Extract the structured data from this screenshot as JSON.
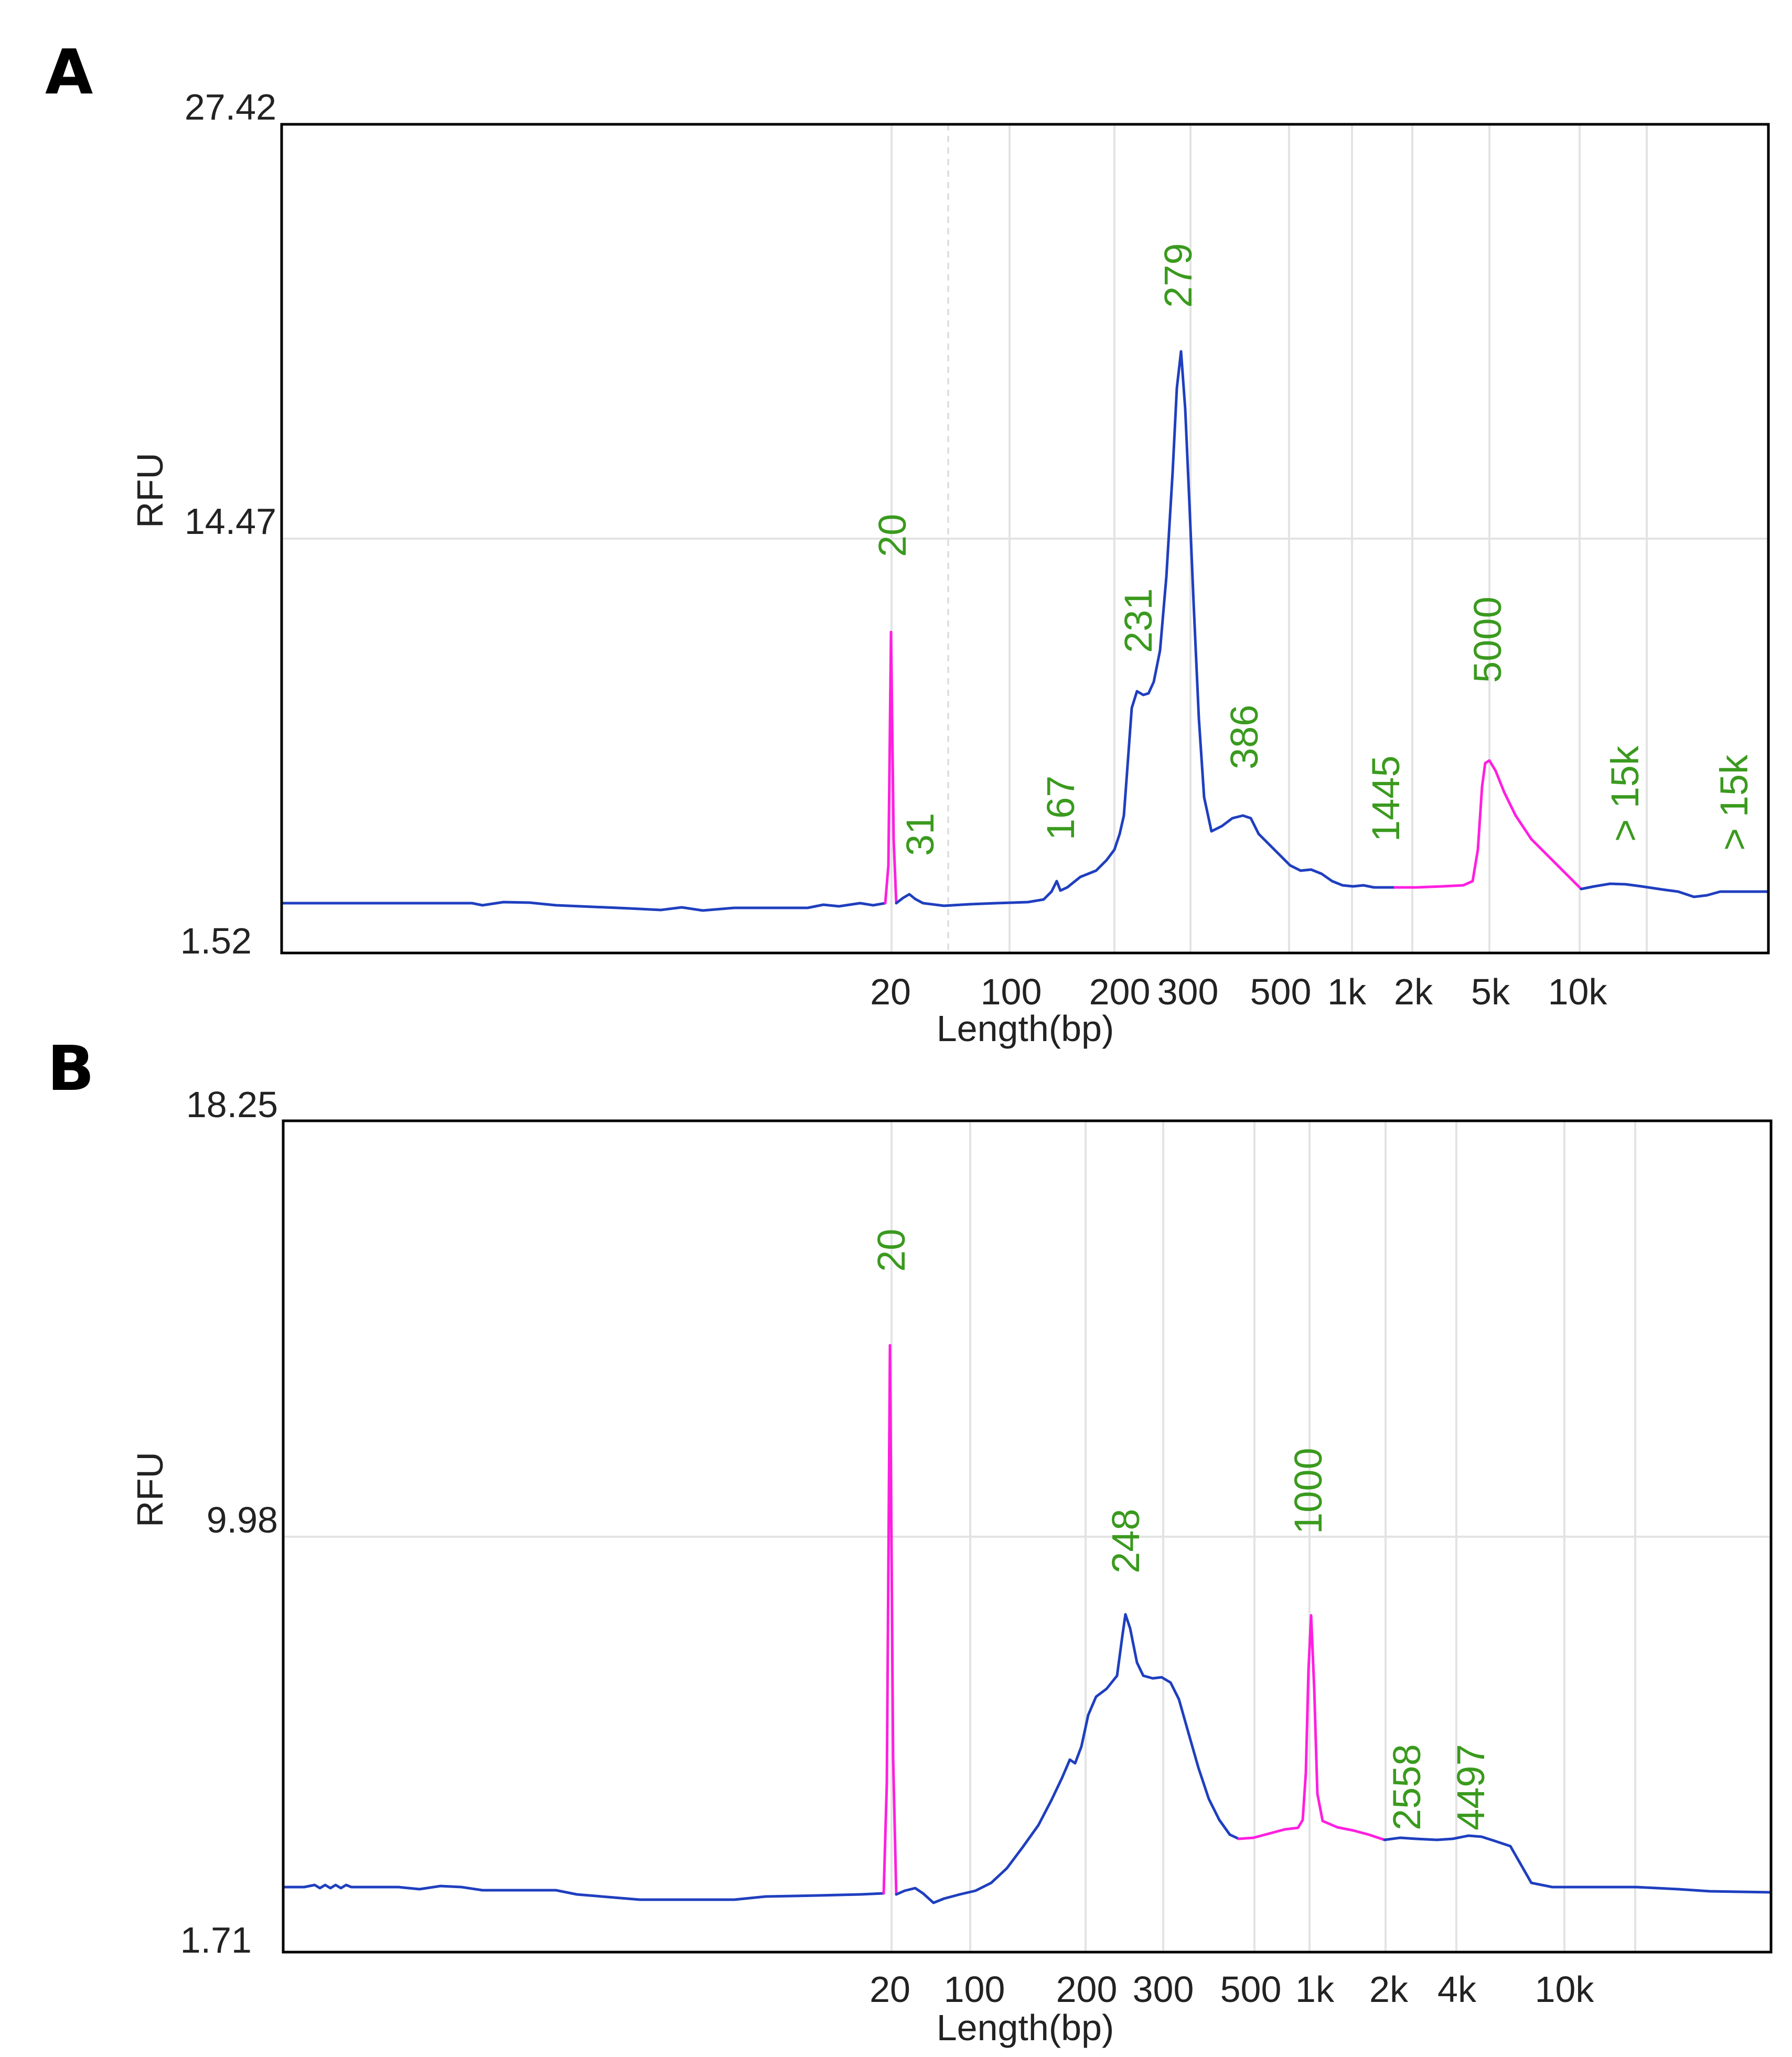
{
  "colors": {
    "trace": "#1f3fbf",
    "marker": "#ff1fe0",
    "peak_label": "#3a9a1e",
    "grid": "#e3e3e3"
  },
  "chart_data": [
    {
      "panel": "A",
      "type": "line",
      "xlabel": "Length(bp)",
      "ylabel": "RFU",
      "x_scale": "nonlinear-electrophoresis",
      "y_ticks": [
        "27.42",
        "14.47",
        "1.52"
      ],
      "ylim": [
        1.52,
        27.42
      ],
      "x_ticks": [
        "20",
        "100",
        "200",
        "300",
        "500",
        "1k",
        "2k",
        "5k",
        "10k"
      ],
      "grid": true,
      "peaks": [
        {
          "label": "20",
          "x_bp": 20,
          "rfu": 11.8,
          "marker": true
        },
        {
          "label": "31",
          "x_bp": 31,
          "rfu": 3.2,
          "marker": false
        },
        {
          "label": "167",
          "x_bp": 167,
          "rfu": 3.5,
          "marker": false
        },
        {
          "label": "231",
          "x_bp": 231,
          "rfu": 9.8,
          "marker": false
        },
        {
          "label": "279",
          "x_bp": 279,
          "rfu": 19.6,
          "marker": false
        },
        {
          "label": "386",
          "x_bp": 386,
          "rfu": 6.0,
          "marker": false
        },
        {
          "label": "1445",
          "x_bp": 1445,
          "rfu": 3.7,
          "marker": false
        },
        {
          "label": "5000",
          "x_bp": 5000,
          "rfu": 7.4,
          "marker": true
        },
        {
          "label": "> 15k",
          "x_bp": 15000,
          "rfu": 3.8,
          "marker": false
        },
        {
          "label": "> 15k",
          "x_bp": 25000,
          "rfu": 3.6,
          "marker": false
        }
      ]
    },
    {
      "panel": "B",
      "type": "line",
      "xlabel": "Length(bp)",
      "ylabel": "RFU",
      "x_scale": "nonlinear-electrophoresis",
      "y_ticks": [
        "18.25",
        "9.98",
        "1.71"
      ],
      "ylim": [
        1.71,
        18.25
      ],
      "x_ticks": [
        "20",
        "100",
        "200",
        "300",
        "500",
        "1k",
        "2k",
        "4k",
        "10k"
      ],
      "grid": true,
      "peaks": [
        {
          "label": "20",
          "x_bp": 20,
          "rfu": 13.0,
          "marker": true
        },
        {
          "label": "248",
          "x_bp": 248,
          "rfu": 8.2,
          "marker": false
        },
        {
          "label": "1000",
          "x_bp": 1000,
          "rfu": 8.2,
          "marker": true
        },
        {
          "label": "2558",
          "x_bp": 2558,
          "rfu": 3.1,
          "marker": false
        },
        {
          "label": "4497",
          "x_bp": 4497,
          "rfu": 3.2,
          "marker": false
        }
      ]
    }
  ]
}
